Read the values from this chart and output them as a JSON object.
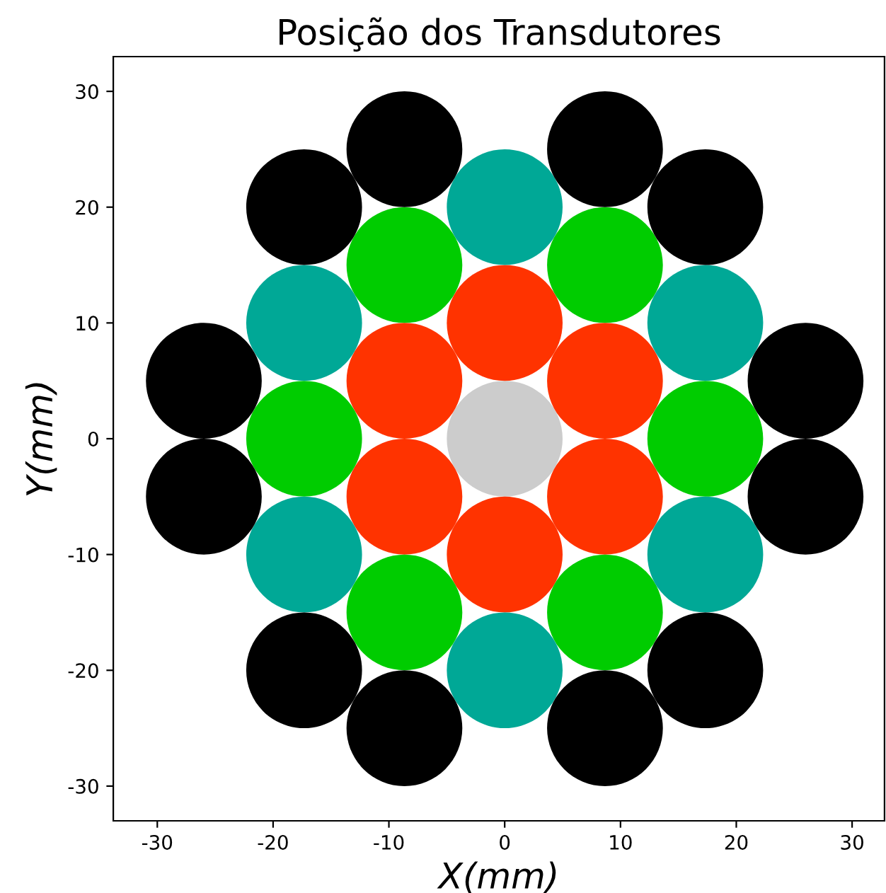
{
  "chart_data": {
    "type": "bubble",
    "title": "Posição dos Transdutores",
    "xlabel": "X(mm)",
    "ylabel": "Y(mm)",
    "xlim": [
      -33.8,
      32.8
    ],
    "ylim": [
      -33,
      33
    ],
    "xticks": [
      -30,
      -20,
      -10,
      0,
      10,
      20,
      30
    ],
    "yticks": [
      -30,
      -20,
      -10,
      0,
      10,
      20,
      30
    ],
    "grid": false,
    "legend": false,
    "series": [
      {
        "color": "#cccccc",
        "x": [
          0
        ],
        "values": [
          0
        ],
        "sizes": [
          1
        ]
      },
      {
        "color": "#ff3300",
        "x": [
          0,
          0,
          8.66,
          8.66,
          -8.66,
          -8.66
        ],
        "values": [
          10,
          -10,
          5,
          -5,
          5,
          -5
        ],
        "sizes": [
          1,
          1,
          1,
          1,
          1,
          1
        ]
      },
      {
        "color": "#00cc00",
        "x": [
          8.66,
          8.66,
          -8.66,
          -8.66,
          17.32,
          -17.32
        ],
        "values": [
          15,
          -15,
          15,
          -15,
          0,
          0
        ],
        "sizes": [
          1,
          1,
          1,
          1,
          1,
          1
        ]
      },
      {
        "color": "#00a896",
        "x": [
          0,
          0,
          17.32,
          17.32,
          -17.32,
          -17.32
        ],
        "values": [
          20,
          -20,
          10,
          -10,
          10,
          -10
        ],
        "sizes": [
          1,
          1,
          1,
          1,
          1,
          1
        ]
      },
      {
        "color": "#000000",
        "x": [
          8.66,
          8.66,
          -8.66,
          -8.66,
          17.32,
          17.32,
          -17.32,
          -17.32,
          25.98,
          25.98,
          -25.98,
          -25.98
        ],
        "values": [
          25,
          -25,
          25,
          -25,
          20,
          -20,
          20,
          -20,
          5,
          -5,
          5,
          -5
        ],
        "sizes": [
          1,
          1,
          1,
          1,
          1,
          1,
          1,
          1,
          1,
          1,
          1,
          1
        ]
      }
    ]
  }
}
